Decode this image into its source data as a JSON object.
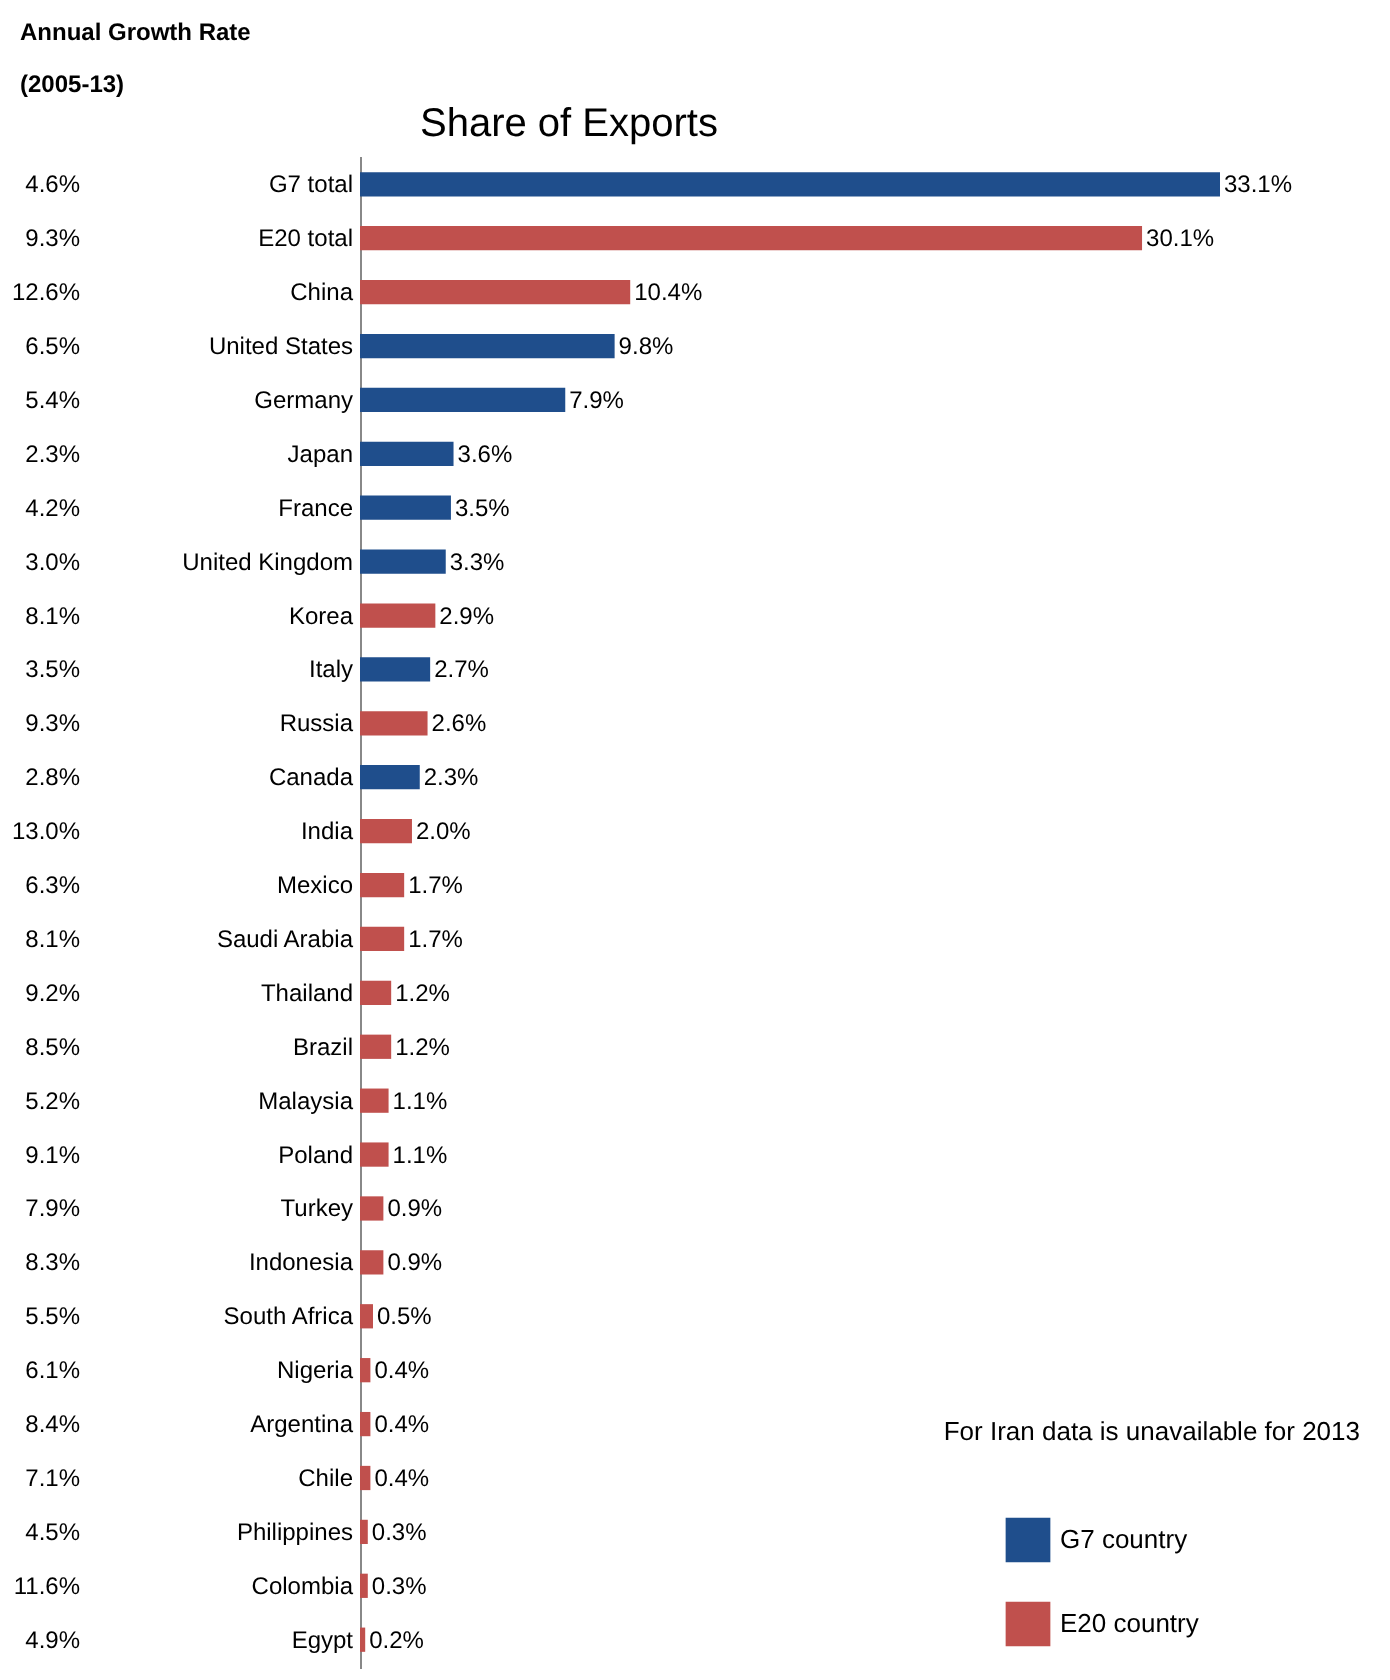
{
  "chart_data": {
    "type": "bar",
    "orientation": "horizontal",
    "title": "Share of Exports",
    "categories": [
      "G7 total",
      "E20 total",
      "China",
      "United States",
      "Germany",
      "Japan",
      "France",
      "United Kingdom",
      "Korea",
      "Italy",
      "Russia",
      "Canada",
      "India",
      "Mexico",
      "Saudi Arabia",
      "Thailand",
      "Brazil",
      "Malaysia",
      "Poland",
      "Turkey",
      "Indonesia",
      "South Africa",
      "Nigeria",
      "Argentina",
      "Chile",
      "Philippines",
      "Colombia",
      "Egypt"
    ],
    "series": [
      {
        "name": "G7 country",
        "color": "#1f4e8c",
        "values": [
          33.1,
          null,
          null,
          9.8,
          7.9,
          3.6,
          3.5,
          3.3,
          null,
          2.7,
          null,
          2.3,
          null,
          null,
          null,
          null,
          null,
          null,
          null,
          null,
          null,
          null,
          null,
          null,
          null,
          null,
          null,
          null
        ],
        "value_labels": [
          "33.1%",
          null,
          null,
          "9.8%",
          "7.9%",
          "3.6%",
          "3.5%",
          "3.3%",
          null,
          "2.7%",
          null,
          "2.3%",
          null,
          null,
          null,
          null,
          null,
          null,
          null,
          null,
          null,
          null,
          null,
          null,
          null,
          null,
          null,
          null
        ]
      },
      {
        "name": "E20 country",
        "color": "#c0504d",
        "values": [
          null,
          30.1,
          10.4,
          null,
          null,
          null,
          null,
          null,
          2.9,
          null,
          2.6,
          null,
          2.0,
          1.7,
          1.7,
          1.2,
          1.2,
          1.1,
          1.1,
          0.9,
          0.9,
          0.5,
          0.4,
          0.4,
          0.4,
          0.3,
          0.3,
          0.2
        ],
        "value_labels": [
          null,
          "30.1%",
          "10.4%",
          null,
          null,
          null,
          null,
          null,
          "2.9%",
          null,
          "2.6%",
          null,
          "2.0%",
          "1.7%",
          "1.7%",
          "1.2%",
          "1.2%",
          "1.1%",
          "1.1%",
          "0.9%",
          "0.9%",
          "0.5%",
          "0.4%",
          "0.4%",
          "0.4%",
          "0.3%",
          "0.3%",
          "0.2%"
        ]
      }
    ],
    "legend": "bottom right",
    "annotations": [
      "Annual Growth Rate",
      "(2005-13)",
      "4.6%",
      "9.3%",
      "12.6%",
      "6.5%",
      "5.4%",
      "2.3%",
      "4.2%",
      "3.0%",
      "8.1%",
      "3.5%",
      "9.3%",
      "2.8%",
      "13.0%",
      "6.3%",
      "8.1%",
      "9.2%",
      "8.5%",
      "5.2%",
      "9.1%",
      "7.9%",
      "8.3%",
      "5.5%",
      "6.1%",
      "8.4%",
      "7.1%",
      "4.5%",
      "11.6%",
      "4.9%",
      "For Iran data is unavailable for 2013"
    ]
  }
}
